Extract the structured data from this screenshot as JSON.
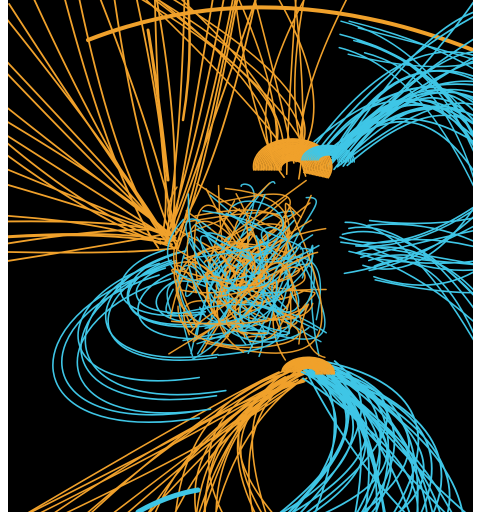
{
  "scene": {
    "subject": "magnetic-field-lines-visualization",
    "colors": {
      "background": "#000000",
      "open_field_orange": "#f0a12b",
      "open_field_cyan": "#3fc6e6",
      "page": "#ffffff"
    }
  }
}
